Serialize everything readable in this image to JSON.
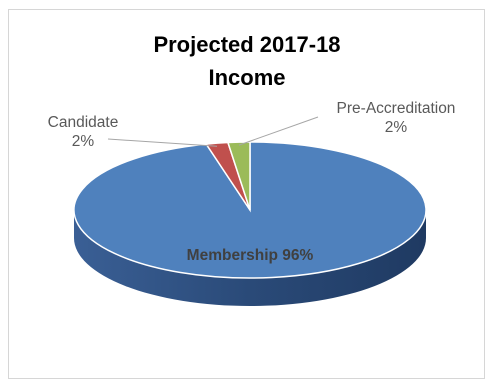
{
  "chart_data": {
    "type": "pie",
    "title": "Projected 2017-18\nIncome",
    "slices": [
      {
        "label": "Membership",
        "value": 96,
        "color": "#4f81bd",
        "side_color": "#2c4d7c",
        "label_text": "Membership 96%"
      },
      {
        "label": "Candidate",
        "value": 2,
        "color": "#c0504d",
        "side_color": "#7f2a28",
        "label_text": "Candidate\n2%"
      },
      {
        "label": "Pre-Accreditation",
        "value": 2,
        "color": "#9bbb59",
        "side_color": "#5f7a2e",
        "label_text": "Pre-Accreditation\n2%"
      }
    ],
    "legend": "none",
    "style": "3d"
  }
}
